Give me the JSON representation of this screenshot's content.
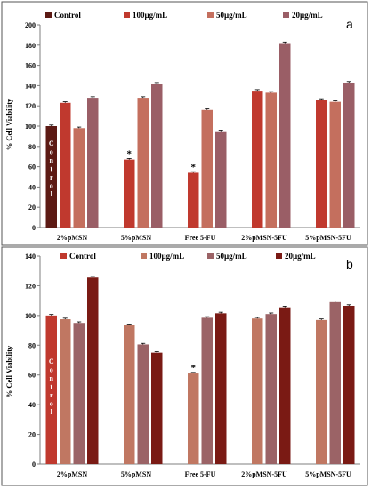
{
  "chart_data": [
    {
      "type": "bar",
      "panel_label": "a",
      "ylabel": "% Cell Viability",
      "ylim": [
        0,
        200
      ],
      "yticks": [
        "0",
        "20",
        "40",
        "60",
        "80",
        "100",
        "120",
        "140",
        "160",
        "180",
        "200"
      ],
      "categories": [
        "2%pMSN",
        "5%pMSN",
        "Free 5-FU",
        "2%pMSN-5FU",
        "5%pMSN-5FU"
      ],
      "legend_placement": "top",
      "control_text": [
        "C",
        "o",
        "n",
        "t",
        "r",
        "o",
        "l"
      ],
      "series": [
        {
          "name": "Control",
          "color": "#5c1a14",
          "values": [
            100,
            null,
            null,
            null,
            null
          ]
        },
        {
          "name": "100µg/mL",
          "color": "#c0392e",
          "values": [
            123,
            67,
            54,
            135,
            126
          ]
        },
        {
          "name": "50µg/mL",
          "color": "#c46f5e",
          "values": [
            98,
            128,
            116,
            133,
            124
          ]
        },
        {
          "name": "20µg/mL",
          "color": "#9a5e66",
          "values": [
            128,
            142,
            95,
            182,
            143
          ]
        }
      ],
      "annotations": [
        {
          "text": "*",
          "category": "5%pMSN",
          "series": "100µg/mL"
        },
        {
          "text": "*",
          "category": "Free 5-FU",
          "series": "100µg/mL"
        }
      ]
    },
    {
      "type": "bar",
      "panel_label": "b",
      "ylabel": "% Cell Viability",
      "ylim": [
        0,
        140
      ],
      "yticks": [
        "0",
        "20",
        "40",
        "60",
        "80",
        "100",
        "120",
        "140"
      ],
      "categories": [
        "2%pMSN",
        "5%pMSN",
        "Free 5-FU",
        "2%pMSN-5FU",
        "5%pMSN-5FU"
      ],
      "legend_placement": "top",
      "control_text": [
        "C",
        "o",
        "n",
        "t",
        "r",
        "o",
        "l"
      ],
      "series": [
        {
          "name": "Control",
          "color": "#c0392e",
          "values": [
            100,
            null,
            null,
            null,
            null
          ]
        },
        {
          "name": "100µg/mL",
          "color": "#c07762",
          "values": [
            97.5,
            93.5,
            61,
            98,
            97
          ]
        },
        {
          "name": "50µg/mL",
          "color": "#9b6366",
          "values": [
            95,
            80.5,
            98.5,
            101,
            109
          ]
        },
        {
          "name": "20µg/mL",
          "color": "#7a1a14",
          "values": [
            125.5,
            75,
            101.5,
            105.5,
            106.5
          ]
        }
      ],
      "annotations": [
        {
          "text": "*",
          "category": "Free 5-FU",
          "series": "100µg/mL"
        }
      ]
    }
  ]
}
